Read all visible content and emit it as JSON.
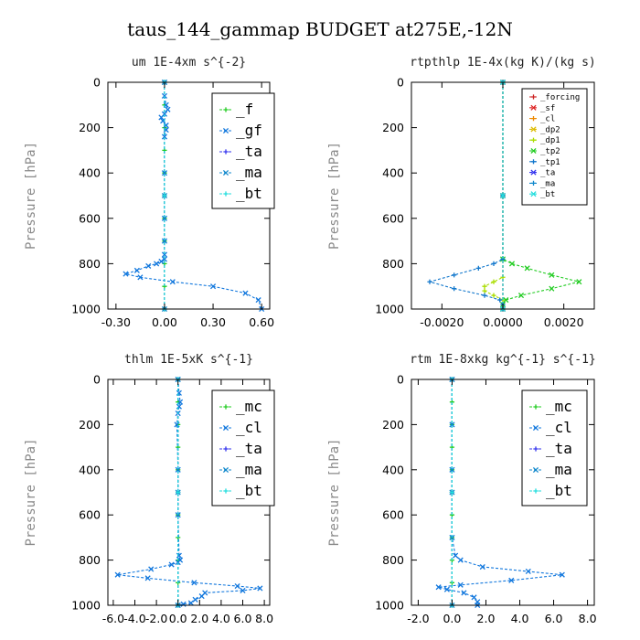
{
  "figure_title": "taus_144_gammap  BUDGET at275E,-12N",
  "chart_data": [
    {
      "type": "line",
      "title": "um   1E-4xm s^{-2}",
      "ylabel": "Pressure [hPa]",
      "xlim": [
        -0.35,
        0.65
      ],
      "ylim": [
        1000,
        0
      ],
      "xticks": [
        -0.3,
        0.0,
        0.3,
        0.6
      ],
      "xtick_labels": [
        "-0.30",
        "0.00",
        "0.30",
        "0.60"
      ],
      "yticks": [
        0,
        200,
        400,
        600,
        800,
        1000
      ],
      "ytick_labels": [
        "0",
        "200",
        "400",
        "600",
        "800",
        "1000"
      ],
      "legend_position": "top-right",
      "legend_style": "large",
      "series": [
        {
          "name": "_f",
          "color": "#22cc22",
          "x": [
            0.0,
            0.0,
            0.0,
            0.0,
            0.0,
            0.0,
            0.0,
            0.0,
            0.0,
            0.0,
            0.0
          ],
          "y": [
            0,
            100,
            200,
            300,
            400,
            500,
            600,
            700,
            800,
            900,
            1000
          ]
        },
        {
          "name": "_gf",
          "color": "#1177dd",
          "x": [
            0.0,
            0.0,
            0.01,
            0.02,
            0.0,
            -0.02,
            -0.01,
            0.01,
            0.01,
            0.0,
            0.0,
            0.0,
            0.0,
            0.0,
            0.0,
            -0.02,
            -0.05,
            -0.1,
            -0.17,
            -0.24,
            -0.15,
            0.05,
            0.3,
            0.5,
            0.58,
            0.6
          ],
          "y": [
            0,
            60,
            100,
            120,
            140,
            155,
            170,
            190,
            210,
            240,
            400,
            600,
            700,
            760,
            780,
            790,
            800,
            810,
            830,
            845,
            860,
            880,
            900,
            930,
            960,
            1000
          ]
        },
        {
          "name": "_ta",
          "color": "#3333ee",
          "x": [
            0.0,
            0.0,
            0.0
          ],
          "y": [
            0,
            500,
            1000
          ]
        },
        {
          "name": "_ma",
          "color": "#1188cc",
          "x": [
            0.0,
            0.0,
            0.0
          ],
          "y": [
            0,
            500,
            1000
          ]
        },
        {
          "name": "_bt",
          "color": "#22dddd",
          "x": [
            0.0,
            0.0,
            0.0
          ],
          "y": [
            0,
            500,
            1000
          ]
        }
      ]
    },
    {
      "type": "line",
      "title": "rtpthlp   1E-4x(kg K)/(kg s)",
      "ylabel": "Pressure [hPa]",
      "xlim": [
        -0.003,
        0.003
      ],
      "ylim": [
        1000,
        0
      ],
      "xticks": [
        -0.002,
        0.0,
        0.002
      ],
      "xtick_labels": [
        "-0.0020",
        "0.0000",
        "0.0020"
      ],
      "yticks": [
        0,
        200,
        400,
        600,
        800,
        1000
      ],
      "ytick_labels": [
        "0",
        "200",
        "400",
        "600",
        "800",
        "1000"
      ],
      "legend_position": "top-right",
      "legend_style": "small",
      "series": [
        {
          "name": "_forcing",
          "color": "#cc2222",
          "x": [
            0.0,
            0.0,
            0.0
          ],
          "y": [
            0,
            500,
            1000
          ]
        },
        {
          "name": "_sf",
          "color": "#dd2222",
          "x": [
            0.0,
            0.0,
            0.0
          ],
          "y": [
            0,
            500,
            1000
          ]
        },
        {
          "name": "_cl",
          "color": "#ee8800",
          "x": [
            0.0,
            0.0,
            0.0
          ],
          "y": [
            0,
            500,
            1000
          ]
        },
        {
          "name": "_dp2",
          "color": "#ddbb00",
          "x": [
            0.0,
            0.0,
            0.0
          ],
          "y": [
            0,
            500,
            1000
          ]
        },
        {
          "name": "_dp1",
          "color": "#aadd00",
          "x": [
            0.0,
            0.0,
            0.0,
            -0.0003,
            -0.0006,
            -0.0006,
            -0.0003,
            0.0,
            0.0
          ],
          "y": [
            0,
            500,
            860,
            880,
            900,
            920,
            940,
            960,
            1000
          ]
        },
        {
          "name": "_tp2",
          "color": "#22cc22",
          "x": [
            0.0,
            0.0,
            0.0,
            0.0003,
            0.0008,
            0.0016,
            0.0025,
            0.0016,
            0.0006,
            0.0001,
            0.0,
            0.0
          ],
          "y": [
            0,
            500,
            780,
            800,
            820,
            850,
            880,
            910,
            940,
            960,
            980,
            1000
          ]
        },
        {
          "name": "_tp1",
          "color": "#1177cc",
          "x": [
            0.0,
            0.0,
            0.0,
            -0.0003,
            -0.0008,
            -0.0016,
            -0.0024,
            -0.0016,
            -0.0006,
            -0.0001,
            0.0,
            0.0
          ],
          "y": [
            0,
            500,
            780,
            800,
            820,
            850,
            880,
            910,
            940,
            960,
            980,
            1000
          ]
        },
        {
          "name": "_ta",
          "color": "#3333ee",
          "x": [
            0.0,
            0.0,
            0.0
          ],
          "y": [
            0,
            500,
            1000
          ]
        },
        {
          "name": "_ma",
          "color": "#1188cc",
          "x": [
            0.0,
            0.0,
            0.0
          ],
          "y": [
            0,
            500,
            1000
          ]
        },
        {
          "name": "_bt",
          "color": "#22dddd",
          "x": [
            0.0,
            0.0,
            0.0
          ],
          "y": [
            0,
            500,
            1000
          ]
        }
      ]
    },
    {
      "type": "line",
      "title": "thlm   1E-5xK s^{-1}",
      "ylabel": "Pressure [hPa]",
      "xlim": [
        -6.5,
        8.5
      ],
      "ylim": [
        1000,
        0
      ],
      "xticks": [
        -6,
        -4,
        -2,
        0,
        2,
        4,
        6,
        8
      ],
      "xtick_labels": [
        "-6.0",
        "-4.0",
        "-2.0",
        "0.0",
        "2.0",
        "4.0",
        "6.0",
        "8.0"
      ],
      "yticks": [
        0,
        200,
        400,
        600,
        800,
        1000
      ],
      "ytick_labels": [
        "0",
        "200",
        "400",
        "600",
        "800",
        "1000"
      ],
      "legend_position": "top-right",
      "legend_style": "large",
      "series": [
        {
          "name": "_mc",
          "color": "#22cc22",
          "x": [
            0.0,
            0.0,
            0.0,
            0.0,
            0.0,
            0.0,
            0.0,
            0.0,
            0.0,
            0.0,
            0.0
          ],
          "y": [
            0,
            100,
            200,
            300,
            400,
            500,
            600,
            700,
            800,
            900,
            1000
          ]
        },
        {
          "name": "_cl",
          "color": "#1177dd",
          "x": [
            0.0,
            0.1,
            0.2,
            0.1,
            0.0,
            -0.1,
            0.0,
            0.0,
            0.1,
            0.2,
            0.0,
            -0.6,
            -2.5,
            -5.6,
            -2.8,
            1.5,
            5.5,
            7.6,
            6.0,
            2.5,
            2.2,
            1.6,
            1.2,
            0.5,
            0.0
          ],
          "y": [
            0,
            60,
            100,
            120,
            150,
            200,
            400,
            600,
            780,
            800,
            810,
            820,
            840,
            865,
            880,
            900,
            915,
            925,
            935,
            945,
            960,
            975,
            990,
            995,
            1000
          ]
        },
        {
          "name": "_ta",
          "color": "#3333ee",
          "x": [
            0.0,
            0.0,
            0.0
          ],
          "y": [
            0,
            500,
            1000
          ]
        },
        {
          "name": "_ma",
          "color": "#1188cc",
          "x": [
            0.0,
            0.0,
            0.0
          ],
          "y": [
            0,
            500,
            1000
          ]
        },
        {
          "name": "_bt",
          "color": "#22dddd",
          "x": [
            0.0,
            0.0,
            0.0
          ],
          "y": [
            0,
            500,
            1000
          ]
        }
      ]
    },
    {
      "type": "line",
      "title": "rtm   1E-8xkg kg^{-1} s^{-1}",
      "ylabel": "Pressure [hPa]",
      "xlim": [
        -2.4,
        8.4
      ],
      "ylim": [
        1000,
        0
      ],
      "xticks": [
        -2,
        0,
        2,
        4,
        6,
        8
      ],
      "xtick_labels": [
        "-2.0",
        "0.0",
        "2.0",
        "4.0",
        "6.0",
        "8.0"
      ],
      "yticks": [
        0,
        200,
        400,
        600,
        800,
        1000
      ],
      "ytick_labels": [
        "0",
        "200",
        "400",
        "600",
        "800",
        "1000"
      ],
      "legend_position": "top-right",
      "legend_style": "large",
      "series": [
        {
          "name": "_mc",
          "color": "#22cc22",
          "x": [
            0.0,
            0.0,
            0.0,
            0.0,
            0.0,
            0.0,
            0.0,
            0.0,
            0.0,
            0.0,
            0.0
          ],
          "y": [
            0,
            100,
            200,
            300,
            400,
            500,
            600,
            700,
            800,
            900,
            1000
          ]
        },
        {
          "name": "_cl",
          "color": "#1177dd",
          "x": [
            0.0,
            0.0,
            0.0,
            0.0,
            0.2,
            0.5,
            1.8,
            4.5,
            6.5,
            3.5,
            0.5,
            -0.8,
            -0.3,
            0.7,
            1.3,
            1.5,
            1.5
          ],
          "y": [
            0,
            200,
            400,
            700,
            780,
            800,
            830,
            850,
            865,
            890,
            910,
            920,
            930,
            945,
            965,
            985,
            1000
          ]
        },
        {
          "name": "_ta",
          "color": "#3333ee",
          "x": [
            0.0,
            0.0,
            0.0
          ],
          "y": [
            0,
            500,
            1000
          ]
        },
        {
          "name": "_ma",
          "color": "#1188cc",
          "x": [
            0.0,
            0.0,
            0.0
          ],
          "y": [
            0,
            500,
            1000
          ]
        },
        {
          "name": "_bt",
          "color": "#22dddd",
          "x": [
            0.0,
            0.0,
            0.0
          ],
          "y": [
            0,
            500,
            1000
          ]
        }
      ]
    }
  ]
}
